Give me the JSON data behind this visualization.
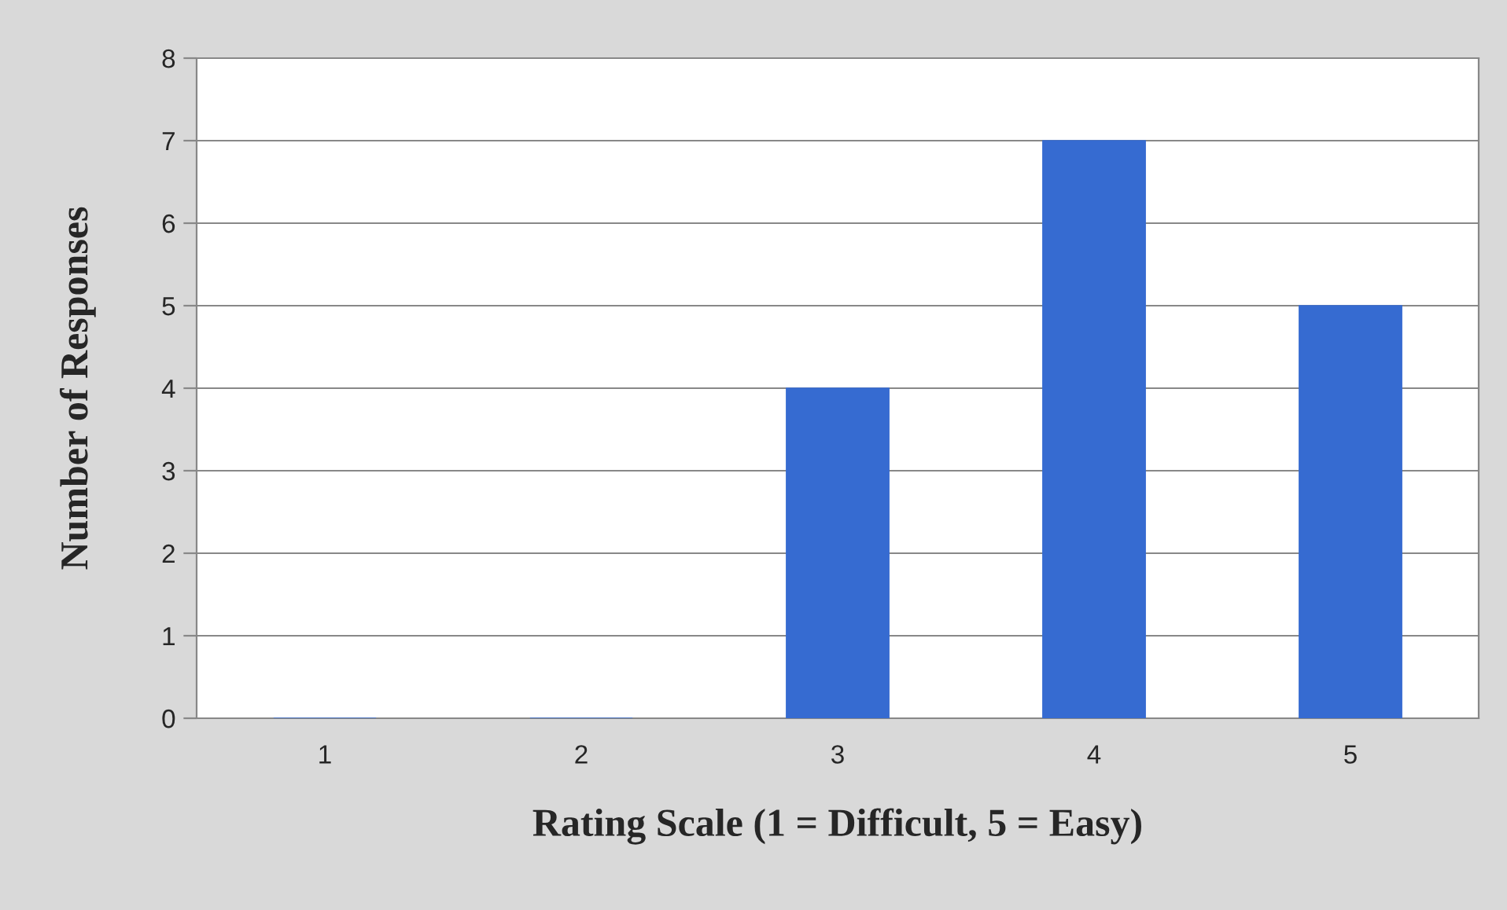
{
  "chart_data": {
    "type": "bar",
    "xlabel": "Rating Scale (1 = Difficult, 5 = Easy)",
    "ylabel": "Number of Responses",
    "categories": [
      "1",
      "2",
      "3",
      "4",
      "5"
    ],
    "values": [
      0,
      0,
      4,
      7,
      5
    ],
    "color": "#366bd1",
    "ylim": [
      0,
      8
    ],
    "yticks": [
      0,
      1,
      2,
      3,
      4,
      5,
      6,
      7,
      8
    ],
    "grid": "y"
  }
}
